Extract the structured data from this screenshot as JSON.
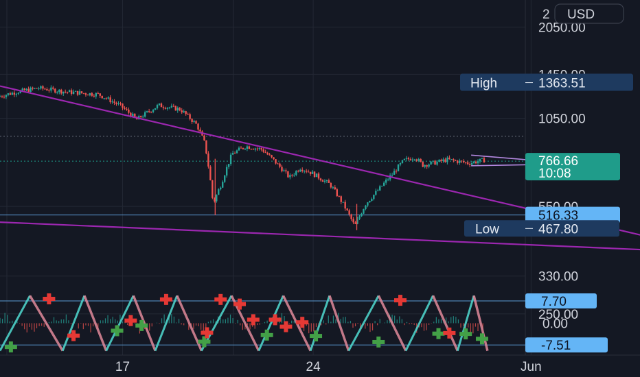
{
  "chart_data": {
    "type": "candlestick",
    "title": "",
    "currency_label": "USD",
    "colors": {
      "background": "#141823",
      "grid": "#232834",
      "up": "#26a69a",
      "down": "#ef5350",
      "trendline": "#9c27b0",
      "support_line": "#5b9bd5",
      "last_price_bg": "#1f9c8a",
      "high_low_bg": "#1e3a5f",
      "level_bg": "#64b5f6",
      "axis_text": "#d1d4dc"
    },
    "price_axis": {
      "scale": "log",
      "range": [
        295,
        2500
      ],
      "ticks": [
        "2050.00",
        "1450.00",
        "1050.00",
        "550.00",
        "330.00",
        "250.00"
      ],
      "top_tick_partial": "2"
    },
    "time_axis": {
      "ticks": [
        {
          "label": "17",
          "day": 17
        },
        {
          "label": "24",
          "day": 24
        },
        {
          "label": "Jun",
          "day": 32
        }
      ]
    },
    "x_range_days": [
      12.5,
      36
    ],
    "last_price": {
      "value": "766.66",
      "countdown": "10:08"
    },
    "markers": {
      "high": {
        "label": "High",
        "value": "1363.51",
        "price": 1363.51
      },
      "low": {
        "label": "Low",
        "value": "467.80",
        "price": 467.8
      }
    },
    "horizontal_levels": [
      {
        "value": "516.33",
        "price": 516.33
      },
      {
        "dotted_price": 920
      }
    ],
    "path": [
      [
        12.5,
        1230
      ],
      [
        13.2,
        1275
      ],
      [
        14.0,
        1310
      ],
      [
        15.0,
        1275
      ],
      [
        16.2,
        1250
      ],
      [
        17.0,
        1150
      ],
      [
        17.6,
        1040
      ],
      [
        18.4,
        1155
      ],
      [
        19.2,
        1120
      ],
      [
        19.8,
        1000
      ],
      [
        20.1,
        870
      ],
      [
        20.4,
        560
      ],
      [
        20.7,
        650
      ],
      [
        21.1,
        810
      ],
      [
        21.6,
        855
      ],
      [
        22.2,
        835
      ],
      [
        22.6,
        775
      ],
      [
        23.2,
        680
      ],
      [
        23.6,
        730
      ],
      [
        24.0,
        705
      ],
      [
        24.7,
        645
      ],
      [
        25.2,
        555
      ],
      [
        25.6,
        475
      ],
      [
        26.0,
        560
      ],
      [
        26.5,
        625
      ],
      [
        27.0,
        700
      ],
      [
        27.4,
        770
      ],
      [
        27.8,
        790
      ],
      [
        28.1,
        745
      ],
      [
        28.6,
        760
      ],
      [
        29.0,
        775
      ],
      [
        29.4,
        765
      ],
      [
        29.8,
        755
      ],
      [
        30.3,
        772
      ]
    ],
    "trendlines": [
      {
        "from": [
          12.5,
          1330
        ],
        "to": [
          36.8,
          430
        ]
      },
      {
        "from": [
          12.5,
          490
        ],
        "to": [
          36.8,
          398
        ]
      },
      {
        "from": [
          29.8,
          801
        ],
        "to": [
          31.8,
          775
        ]
      },
      {
        "from": [
          29.8,
          741
        ],
        "to": [
          32.0,
          747
        ]
      }
    ],
    "oscillator": {
      "range": [
        -11,
        11
      ],
      "ticks": [
        "0.00"
      ],
      "upper_level": {
        "value": "7.70",
        "num": 7.7
      },
      "lower_level": {
        "value": "-7.51",
        "num": -7.51
      },
      "cycles": [
        {
          "start": 12.5,
          "peak": 13.6,
          "trough": 14.8
        },
        {
          "start": 14.8,
          "peak": 15.6,
          "trough": 16.4
        },
        {
          "start": 16.4,
          "peak": 17.4,
          "trough": 18.2
        },
        {
          "start": 18.2,
          "peak": 19.0,
          "trough": 19.9
        },
        {
          "start": 19.9,
          "peak": 21.0,
          "trough": 22.0
        },
        {
          "start": 22.0,
          "peak": 22.9,
          "trough": 23.9
        },
        {
          "start": 23.9,
          "peak": 24.6,
          "trough": 25.3
        },
        {
          "start": 25.3,
          "peak": 26.4,
          "trough": 27.4
        },
        {
          "start": 27.4,
          "peak": 28.4,
          "trough": 29.3
        },
        {
          "start": 29.3,
          "peak": 29.9,
          "trough": 30.4
        }
      ],
      "buy_marks": [
        [
          12.9,
          -8.2
        ],
        [
          16.8,
          -2.6
        ],
        [
          17.7,
          -0.8
        ],
        [
          20.0,
          -6.4
        ],
        [
          22.3,
          -4.1
        ],
        [
          24.1,
          -4.4
        ],
        [
          26.4,
          -6.5
        ],
        [
          28.6,
          -3.6
        ],
        [
          29.6,
          -3.7
        ],
        [
          30.2,
          -5.4
        ]
      ],
      "sell_marks": [
        [
          14.3,
          8.4
        ],
        [
          15.2,
          -4.3
        ],
        [
          17.3,
          0.9
        ],
        [
          18.6,
          8.2
        ],
        [
          20.1,
          -3.3
        ],
        [
          20.6,
          8.2
        ],
        [
          21.3,
          6.6
        ],
        [
          21.8,
          1.2
        ],
        [
          22.6,
          1.2
        ],
        [
          23.0,
          -1.2
        ],
        [
          23.6,
          0.3
        ],
        [
          27.2,
          7.9
        ],
        [
          29.0,
          -3.4
        ]
      ]
    }
  }
}
